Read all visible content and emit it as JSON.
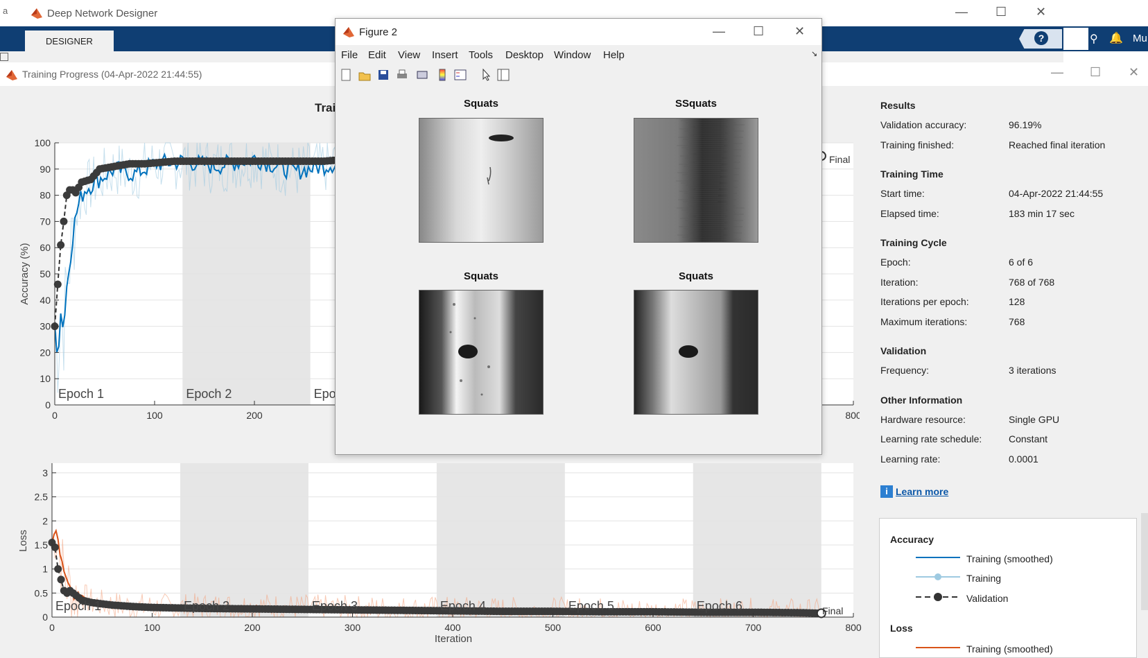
{
  "designer": {
    "window_title": "Deep Network Designer",
    "left_letter": "a",
    "tab_label": "DESIGNER",
    "help_label": "?",
    "right_label": "Mu"
  },
  "training": {
    "window_title": "Training Progress (04-Apr-2022 21:44:55)",
    "plot_title_partial": "Trai"
  },
  "accuracy_chart": {
    "ylabel": "Accuracy (%)",
    "yticks": [
      "0",
      "10",
      "20",
      "30",
      "40",
      "50",
      "60",
      "70",
      "80",
      "90",
      "100"
    ],
    "xticks": [
      "0",
      "100",
      "200",
      "800"
    ],
    "epoch_labels": [
      "Epoch 1",
      "Epoch 2",
      "Epoc"
    ],
    "final_label": "Final"
  },
  "loss_chart": {
    "ylabel": "Loss",
    "xlabel": "Iteration",
    "yticks": [
      "0",
      "0.5",
      "1",
      "1.5",
      "2",
      "2.5",
      "3"
    ],
    "xticks": [
      "0",
      "100",
      "200",
      "300",
      "400",
      "500",
      "600",
      "700",
      "800"
    ],
    "epoch_labels": [
      "Epoch 1",
      "Epoch 2",
      "Epoch 3",
      "Epoch 4",
      "Epoch 5",
      "Epoch 6"
    ],
    "final_label": "Final"
  },
  "chart_data": [
    {
      "type": "line",
      "ylabel": "Accuracy (%)",
      "ylim": [
        0,
        100
      ],
      "xlim": [
        0,
        800
      ],
      "series": [
        {
          "name": "Training (smoothed)",
          "x": [
            0,
            3,
            6,
            9,
            12,
            15,
            18,
            21,
            25,
            30,
            40,
            60,
            80,
            100,
            130,
            160,
            200,
            240,
            280,
            300,
            330
          ],
          "values": [
            30,
            20,
            35,
            30,
            45,
            55,
            65,
            72,
            78,
            82,
            85,
            90,
            88,
            92,
            93,
            91,
            94,
            89,
            92,
            95,
            93
          ]
        },
        {
          "name": "Validation",
          "x": [
            0,
            3,
            6,
            9,
            12,
            15,
            18,
            21,
            24,
            27,
            36,
            45,
            60,
            75,
            90,
            120,
            150,
            180,
            210,
            240,
            270,
            300,
            330
          ],
          "values": [
            30,
            46,
            61,
            70,
            80,
            82,
            82,
            81,
            83,
            85,
            86,
            90,
            91,
            92,
            92,
            93,
            93,
            93,
            93,
            93,
            93,
            94,
            95
          ]
        }
      ]
    },
    {
      "type": "line",
      "ylabel": "Loss",
      "xlabel": "Iteration",
      "ylim": [
        0,
        3.2
      ],
      "xlim": [
        0,
        800
      ],
      "series": [
        {
          "name": "Training (smoothed)",
          "x": [
            0,
            3,
            6,
            9,
            12,
            15,
            18,
            24,
            30,
            40,
            60,
            80,
            100,
            150,
            200,
            250,
            300,
            350,
            400,
            450,
            500,
            550,
            600,
            650,
            700,
            750,
            768
          ],
          "values": [
            1.5,
            1.8,
            1.6,
            1.2,
            0.9,
            0.7,
            0.6,
            0.4,
            0.45,
            0.3,
            0.25,
            0.22,
            0.2,
            0.2,
            0.22,
            0.18,
            0.16,
            0.15,
            0.14,
            0.13,
            0.12,
            0.12,
            0.11,
            0.1,
            0.1,
            0.1,
            0.08
          ]
        },
        {
          "name": "Validation",
          "x": [
            0,
            3,
            6,
            9,
            12,
            15,
            18,
            24,
            30,
            40,
            60,
            80,
            100,
            150,
            200,
            250,
            300,
            350,
            400,
            450,
            500,
            550,
            600,
            650,
            700,
            750,
            768
          ],
          "values": [
            1.55,
            1.45,
            1.0,
            0.78,
            0.55,
            0.5,
            0.55,
            0.45,
            0.35,
            0.3,
            0.25,
            0.22,
            0.2,
            0.18,
            0.17,
            0.16,
            0.15,
            0.14,
            0.13,
            0.12,
            0.12,
            0.11,
            0.11,
            0.1,
            0.1,
            0.09,
            0.08
          ]
        }
      ]
    }
  ],
  "results": {
    "sections": [
      {
        "heading": "Results",
        "rows": [
          [
            "Validation accuracy:",
            "96.19%"
          ],
          [
            "Training finished:",
            "Reached final iteration"
          ]
        ]
      },
      {
        "heading": "Training Time",
        "rows": [
          [
            "Start time:",
            "04-Apr-2022 21:44:55"
          ],
          [
            "Elapsed time:",
            "183 min 17 sec"
          ]
        ]
      },
      {
        "heading": "Training Cycle",
        "rows": [
          [
            "Epoch:",
            "6 of 6"
          ],
          [
            "Iteration:",
            "768 of 768"
          ],
          [
            "Iterations per epoch:",
            "128"
          ],
          [
            "Maximum iterations:",
            "768"
          ]
        ]
      },
      {
        "heading": "Validation",
        "rows": [
          [
            "Frequency:",
            "3 iterations"
          ]
        ]
      },
      {
        "heading": "Other Information",
        "rows": [
          [
            "Hardware resource:",
            "Single GPU"
          ],
          [
            "Learning rate schedule:",
            "Constant"
          ],
          [
            "Learning rate:",
            "0.0001"
          ]
        ]
      }
    ],
    "learn_more": "Learn more"
  },
  "legend": {
    "accuracy_heading": "Accuracy",
    "training_smoothed": "Training (smoothed)",
    "training": "Training",
    "validation": "Validation",
    "loss_heading": "Loss",
    "loss_training_smoothed": "Training (smoothed)",
    "accuracy_smoothed_color": "#0072bd",
    "accuracy_training_color": "#9ecae1",
    "loss_color": "#d95319",
    "validation_color": "#333333"
  },
  "figure2": {
    "title": "Figure 2",
    "menu": [
      "File",
      "Edit",
      "View",
      "Insert",
      "Tools",
      "Desktop",
      "Window",
      "Help"
    ],
    "images": [
      {
        "title": "Squats"
      },
      {
        "title": "SSquats"
      },
      {
        "title": "Squats"
      },
      {
        "title": "Squats"
      }
    ]
  }
}
